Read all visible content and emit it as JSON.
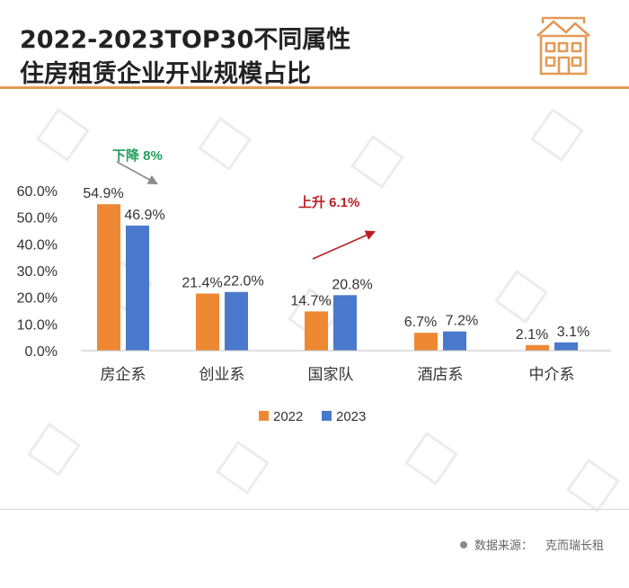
{
  "title": {
    "line1": "2022-2023TOP30不同属性",
    "line2": "住房租赁企业开业规模占比"
  },
  "source": {
    "label": "数据来源：",
    "name": "克而瑞长租"
  },
  "annotations": {
    "down": "下降 8%",
    "up": "上升 6.1%"
  },
  "colors": {
    "orange": "#ef8833",
    "blue": "#4a78cc",
    "green": "#21a05a",
    "red": "#b81f24",
    "accent": "#e39a55"
  },
  "chart_data": {
    "type": "bar",
    "title": "",
    "categories": [
      "房企系",
      "创业系",
      "国家队",
      "酒店系",
      "中介系"
    ],
    "series": [
      {
        "name": "2022",
        "values": [
          54.9,
          21.4,
          14.7,
          6.7,
          2.1
        ],
        "labels": [
          "54.9%",
          "21.4%",
          "14.7%",
          "6.7%",
          "2.1%"
        ]
      },
      {
        "name": "2023",
        "values": [
          46.9,
          22.0,
          20.8,
          7.2,
          3.1
        ],
        "labels": [
          "46.9%",
          "22.0%",
          "20.8%",
          "7.2%",
          "3.1%"
        ]
      }
    ],
    "y_ticks": [
      "0.0%",
      "10.0%",
      "20.0%",
      "30.0%",
      "40.0%",
      "50.0%",
      "60.0%"
    ],
    "ylim": [
      0,
      60
    ],
    "legend": [
      "2022",
      "2023"
    ],
    "legend_position": "bottom",
    "grid": false,
    "xlabel": "",
    "ylabel": ""
  }
}
